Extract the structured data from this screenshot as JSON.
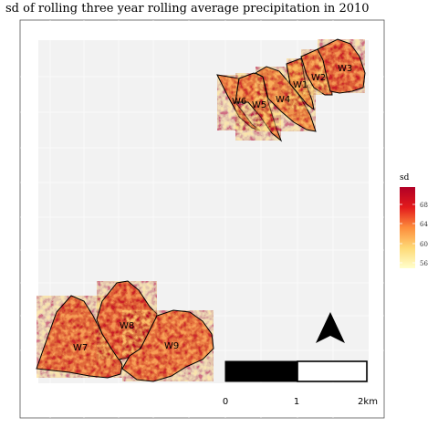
{
  "title": "sd of rolling three year rolling average precipitation in 2010",
  "colors": {
    "panel_bg": "#f2f2f2",
    "frame": "#555555",
    "grid": "#ffffff",
    "gradient": [
      "#ffffcc",
      "#fed976",
      "#fd8d3c",
      "#e31a1c",
      "#b10026"
    ]
  },
  "legend": {
    "title": "sd",
    "ticks": [
      "68",
      "64",
      "60",
      "56"
    ]
  },
  "parcels": [
    {
      "id": "W1",
      "label": "W1"
    },
    {
      "id": "W2",
      "label": "W2"
    },
    {
      "id": "W3",
      "label": "W3"
    },
    {
      "id": "W4",
      "label": "W4"
    },
    {
      "id": "W5",
      "label": "W5"
    },
    {
      "id": "W6",
      "label": "W6"
    },
    {
      "id": "W7",
      "label": "W7"
    },
    {
      "id": "W8",
      "label": "W8"
    },
    {
      "id": "W9",
      "label": "W9"
    }
  ],
  "scale_bar": {
    "labels": [
      "0",
      "1",
      "2km"
    ]
  },
  "north_arrow": {
    "icon": "north-arrow-icon"
  }
}
